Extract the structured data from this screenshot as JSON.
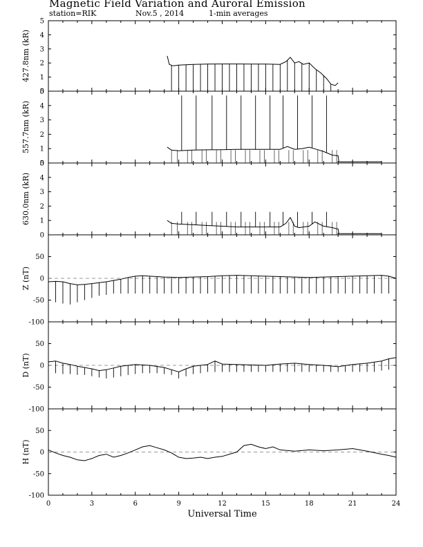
{
  "header": {
    "title": "Magnetic Field Variation and Auroral Emission",
    "station": "station=RIK",
    "date": "Nov.5  , 2014",
    "averaging": "1-min averages"
  },
  "chart_data": [
    {
      "type": "line",
      "ylabel": "427.8nm (kR)",
      "ylim": [
        0,
        5
      ],
      "yticks": [
        0,
        1,
        2,
        3,
        4,
        5
      ],
      "xlim": [
        0,
        24
      ],
      "baseline": null,
      "x": [
        8.2,
        8.35,
        8.6,
        9.0,
        10.0,
        11.0,
        12.0,
        13.0,
        14.0,
        15.0,
        16.0,
        16.4,
        16.7,
        17.0,
        17.3,
        17.6,
        18.0,
        18.4,
        18.8,
        19.2,
        19.5,
        19.8,
        20.0
      ],
      "values": [
        2.5,
        1.9,
        1.8,
        1.85,
        1.9,
        1.92,
        1.93,
        1.93,
        1.92,
        1.92,
        1.9,
        2.1,
        2.4,
        2.0,
        2.1,
        1.9,
        2.0,
        1.6,
        1.3,
        0.9,
        0.5,
        0.4,
        0.6
      ],
      "spikes_x": [
        8.5,
        9.0,
        9.5,
        10.0,
        10.5,
        11.0,
        11.5,
        12.0,
        12.5,
        13.0,
        13.5,
        14.0,
        14.5,
        15.0,
        15.5,
        16.0,
        16.5,
        17.0,
        17.5,
        18.0,
        18.5,
        19.0,
        19.5
      ],
      "spikes_to": 0
    },
    {
      "type": "line",
      "ylabel": "557.7nm (kR)",
      "ylim": [
        0,
        5
      ],
      "yticks": [
        0,
        1,
        2,
        3,
        4,
        5
      ],
      "xlim": [
        0,
        24
      ],
      "baseline": null,
      "x": [
        8.2,
        8.5,
        9.0,
        10.0,
        11.0,
        12.0,
        13.0,
        14.0,
        15.0,
        16.0,
        16.5,
        17.0,
        17.5,
        18.0,
        18.5,
        19.0,
        19.6,
        20.0,
        20.05,
        21.0,
        22.0,
        23.0
      ],
      "values": [
        1.1,
        0.9,
        0.85,
        0.9,
        0.92,
        0.93,
        0.95,
        0.95,
        0.95,
        0.95,
        1.15,
        0.95,
        1.0,
        1.1,
        0.95,
        0.8,
        0.55,
        0.5,
        0.08,
        0.08,
        0.08,
        0.08
      ],
      "spikes_x": [
        9.2,
        10.2,
        11.3,
        12.3,
        13.3,
        14.3,
        15.3,
        16.2,
        17.2,
        18.2,
        19.2
      ],
      "spikes_to": 4.7,
      "small_spikes_x": [
        8.5,
        8.9,
        9.6,
        9.9,
        10.6,
        10.9,
        11.6,
        11.9,
        12.6,
        12.9,
        13.6,
        13.9,
        14.6,
        14.9,
        15.6,
        15.9,
        16.6,
        16.9,
        17.6,
        17.9,
        18.6,
        18.9,
        19.6,
        19.9
      ],
      "spikes_low": 0
    },
    {
      "type": "line",
      "ylabel": "630.0nm (kR)",
      "ylim": [
        0,
        5
      ],
      "yticks": [
        0,
        1,
        2,
        3,
        4,
        5
      ],
      "xlim": [
        0,
        24
      ],
      "baseline": null,
      "x": [
        8.2,
        8.5,
        9.0,
        10.0,
        11.0,
        12.0,
        13.0,
        14.0,
        15.0,
        16.0,
        16.4,
        16.7,
        17.0,
        17.3,
        18.0,
        18.4,
        19.0,
        19.6,
        20.0,
        20.05,
        21.0,
        22.0,
        23.0
      ],
      "values": [
        1.0,
        0.8,
        0.75,
        0.7,
        0.65,
        0.6,
        0.55,
        0.55,
        0.55,
        0.55,
        0.8,
        1.2,
        0.6,
        0.5,
        0.6,
        0.9,
        0.6,
        0.5,
        0.4,
        0.08,
        0.08,
        0.08,
        0.08
      ],
      "spikes_x": [
        9.2,
        10.2,
        11.3,
        12.3,
        13.3,
        14.3,
        15.3,
        16.2,
        17.2,
        18.2,
        19.2
      ],
      "spikes_to": 1.6,
      "small_spikes_x": [
        8.5,
        8.9,
        9.6,
        9.9,
        10.6,
        10.9,
        11.6,
        11.9,
        12.6,
        12.9,
        13.6,
        13.9,
        14.6,
        14.9,
        15.6,
        15.9,
        16.6,
        16.9,
        17.6,
        17.9,
        18.6,
        18.9,
        19.6,
        19.9
      ],
      "spikes_low": 0
    },
    {
      "type": "line",
      "ylabel": "Z (nT)",
      "ylim": [
        -100,
        100
      ],
      "yticks": [
        -100,
        -50,
        0,
        50
      ],
      "xlim": [
        0,
        24
      ],
      "baseline": 0,
      "x": [
        0,
        0.5,
        1,
        1.5,
        2,
        2.5,
        3,
        3.5,
        4,
        4.5,
        5,
        5.5,
        6,
        6.5,
        7,
        8,
        9,
        10,
        11,
        12,
        13,
        14,
        15,
        16,
        17,
        18,
        19,
        20,
        21,
        22,
        23,
        23.5,
        24
      ],
      "values": [
        -8,
        -7,
        -8,
        -12,
        -15,
        -14,
        -12,
        -10,
        -8,
        -5,
        -2,
        2,
        5,
        6,
        5,
        3,
        2,
        3,
        4,
        6,
        7,
        6,
        5,
        4,
        3,
        2,
        3,
        4,
        5,
        6,
        7,
        5,
        0
      ],
      "spikes_x": [
        0,
        0.5,
        1,
        1.5,
        2,
        2.5,
        3,
        3.5,
        4,
        4.5,
        5,
        5.5,
        6,
        6.5,
        7,
        7.5,
        8,
        8.5,
        9,
        9.5,
        10,
        10.5,
        11,
        11.5,
        12,
        12.5,
        13,
        13.5,
        14,
        14.5,
        15,
        15.5,
        16,
        16.5,
        17,
        17.5,
        18,
        18.5,
        19,
        19.5,
        20,
        20.5,
        21,
        21.5,
        22,
        22.5,
        23,
        23.5,
        24
      ],
      "spikes_to": [
        -48,
        -55,
        -58,
        -60,
        -55,
        -50,
        -45,
        -40,
        -38,
        -35,
        -35,
        -35,
        -35,
        -35,
        -35,
        -35,
        -35,
        -35,
        -35,
        -35,
        -35,
        -35,
        -35,
        -35,
        -35,
        -35,
        -35,
        -35,
        -35,
        -35,
        -35,
        -35,
        -35,
        -35,
        -35,
        -35,
        -35,
        -35,
        -35,
        -35,
        -35,
        -35,
        -35,
        -35,
        -35,
        -35,
        -35,
        -35,
        -48
      ]
    },
    {
      "type": "line",
      "ylabel": "D (nT)",
      "ylim": [
        -100,
        100
      ],
      "yticks": [
        -100,
        -50,
        0,
        50
      ],
      "xlim": [
        0,
        24
      ],
      "baseline": 0,
      "x": [
        0,
        0.5,
        1,
        1.5,
        2,
        3,
        3.5,
        4,
        4.5,
        5,
        6,
        7,
        8,
        8.5,
        9,
        9.5,
        10,
        11,
        11.5,
        12,
        13,
        14,
        15,
        16,
        17,
        18,
        19,
        20,
        21,
        22,
        23,
        23.5,
        24
      ],
      "values": [
        8,
        10,
        5,
        2,
        -2,
        -8,
        -12,
        -10,
        -6,
        -2,
        2,
        0,
        -5,
        -10,
        -15,
        -8,
        -2,
        2,
        10,
        3,
        2,
        1,
        0,
        3,
        5,
        2,
        0,
        -3,
        2,
        5,
        10,
        15,
        18
      ],
      "spikes_x": [
        0,
        0.5,
        1,
        1.5,
        2,
        2.5,
        3,
        3.5,
        4,
        4.5,
        5,
        5.5,
        6,
        6.5,
        7,
        7.5,
        8,
        8.5,
        9,
        9.5,
        10,
        10.5,
        11,
        11.5,
        12,
        12.5,
        13,
        13.5,
        14,
        14.5,
        15,
        15.5,
        16,
        16.5,
        17,
        17.5,
        18,
        18.5,
        19,
        19.5,
        20,
        20.5,
        21,
        21.5,
        22,
        22.5,
        23,
        23.5,
        24
      ],
      "spikes_to": [
        -18,
        -18,
        -20,
        -20,
        -22,
        -22,
        -25,
        -28,
        -30,
        -28,
        -25,
        -22,
        -20,
        -18,
        -18,
        -18,
        -20,
        -22,
        -30,
        -25,
        -20,
        -18,
        -15,
        -15,
        -15,
        -15,
        -15,
        -15,
        -15,
        -15,
        -15,
        -15,
        -15,
        -15,
        -15,
        -15,
        -15,
        -15,
        -15,
        -15,
        -15,
        -15,
        -15,
        -15,
        -15,
        -15,
        -12,
        -10,
        -10
      ]
    },
    {
      "type": "line",
      "ylabel": "H (nT)",
      "ylim": [
        -100,
        100
      ],
      "yticks": [
        -100,
        -50,
        0,
        50
      ],
      "xlim": [
        0,
        24
      ],
      "baseline": 0,
      "x": [
        0,
        0.5,
        1,
        1.5,
        2,
        2.5,
        3,
        3.5,
        4,
        4.5,
        5,
        5.5,
        6,
        6.5,
        7,
        7.5,
        8,
        8.5,
        9,
        9.5,
        10,
        10.5,
        11,
        11.5,
        12,
        12.5,
        13,
        13.5,
        14,
        14.5,
        15,
        15.5,
        16,
        17,
        18,
        19,
        20,
        21,
        22,
        23,
        23.5,
        24
      ],
      "values": [
        5,
        -2,
        -8,
        -12,
        -18,
        -20,
        -15,
        -8,
        -5,
        -12,
        -8,
        -2,
        5,
        12,
        15,
        10,
        5,
        -2,
        -12,
        -15,
        -14,
        -12,
        -15,
        -12,
        -10,
        -5,
        0,
        15,
        18,
        12,
        8,
        12,
        5,
        2,
        5,
        3,
        5,
        8,
        2,
        -5,
        -8,
        -12
      ]
    }
  ],
  "x_axis": {
    "label": "Universal Time",
    "ticks": [
      0,
      3,
      6,
      9,
      12,
      15,
      18,
      21,
      24
    ]
  }
}
